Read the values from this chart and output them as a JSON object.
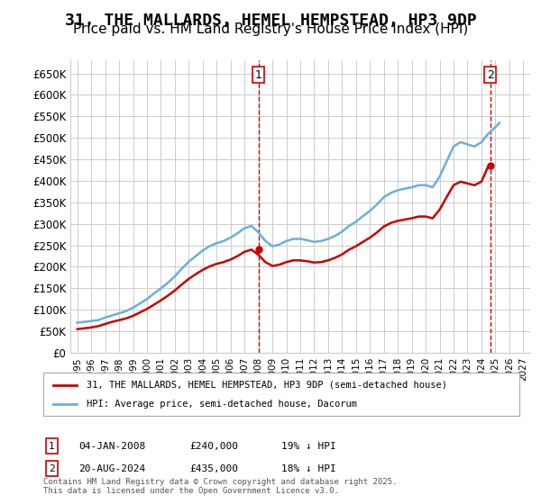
{
  "title": "31, THE MALLARDS, HEMEL HEMPSTEAD, HP3 9DP",
  "subtitle": "Price paid vs. HM Land Registry's House Price Index (HPI)",
  "title_fontsize": 13,
  "subtitle_fontsize": 11,
  "hpi_color": "#6ab0d8",
  "price_color": "#cc0000",
  "vline_color": "#cc0000",
  "background_color": "#ffffff",
  "grid_color": "#cccccc",
  "ylim": [
    0,
    680000
  ],
  "yticks": [
    0,
    50000,
    100000,
    150000,
    200000,
    250000,
    300000,
    350000,
    400000,
    450000,
    500000,
    550000,
    600000,
    650000
  ],
  "ytick_labels": [
    "£0",
    "£50K",
    "£100K",
    "£150K",
    "£200K",
    "£250K",
    "£300K",
    "£350K",
    "£400K",
    "£450K",
    "£500K",
    "£550K",
    "£600K",
    "£650K"
  ],
  "xlim_start": 1994.5,
  "xlim_end": 2027.5,
  "xticks": [
    1995,
    1996,
    1997,
    1998,
    1999,
    2000,
    2001,
    2002,
    2003,
    2004,
    2005,
    2006,
    2007,
    2008,
    2009,
    2010,
    2011,
    2012,
    2013,
    2014,
    2015,
    2016,
    2017,
    2018,
    2019,
    2020,
    2021,
    2022,
    2023,
    2024,
    2025,
    2026,
    2027
  ],
  "purchase1_date": 2008.01,
  "purchase1_price": 240000,
  "purchase1_label": "1",
  "purchase2_date": 2024.64,
  "purchase2_price": 435000,
  "purchase2_label": "2",
  "legend_label1": "31, THE MALLARDS, HEMEL HEMPSTEAD, HP3 9DP (semi-detached house)",
  "legend_label2": "HPI: Average price, semi-detached house, Dacorum",
  "annotation1": "1    04-JAN-2008        £240,000        19% ↓ HPI",
  "annotation2": "2    20-AUG-2024        £435,000        18% ↓ HPI",
  "footnote": "Contains HM Land Registry data © Crown copyright and database right 2025.\nThis data is licensed under the Open Government Licence v3.0.",
  "hpi_data_x": [
    1995,
    1995.5,
    1996,
    1996.5,
    1997,
    1997.5,
    1998,
    1998.5,
    1999,
    1999.5,
    2000,
    2000.5,
    2001,
    2001.5,
    2002,
    2002.5,
    2003,
    2003.5,
    2004,
    2004.5,
    2005,
    2005.5,
    2006,
    2006.5,
    2007,
    2007.5,
    2008,
    2008.5,
    2009,
    2009.5,
    2010,
    2010.5,
    2011,
    2011.5,
    2012,
    2012.5,
    2013,
    2013.5,
    2014,
    2014.5,
    2015,
    2015.5,
    2016,
    2016.5,
    2017,
    2017.5,
    2018,
    2018.5,
    2019,
    2019.5,
    2020,
    2020.5,
    2021,
    2021.5,
    2022,
    2022.5,
    2023,
    2023.5,
    2024,
    2024.5,
    2025,
    2025.3
  ],
  "hpi_data_y": [
    70000,
    72000,
    74000,
    76000,
    82000,
    87000,
    92000,
    97000,
    105000,
    115000,
    125000,
    138000,
    150000,
    163000,
    178000,
    196000,
    212000,
    225000,
    238000,
    248000,
    255000,
    260000,
    268000,
    278000,
    290000,
    295000,
    280000,
    260000,
    248000,
    252000,
    260000,
    265000,
    265000,
    262000,
    258000,
    260000,
    265000,
    272000,
    282000,
    295000,
    305000,
    318000,
    330000,
    345000,
    362000,
    372000,
    378000,
    382000,
    385000,
    390000,
    390000,
    385000,
    410000,
    445000,
    480000,
    490000,
    485000,
    480000,
    490000,
    510000,
    525000,
    535000
  ],
  "price_data_x": [
    1995,
    1995.5,
    1996,
    1996.5,
    1997,
    1997.5,
    1998,
    1998.5,
    1999,
    1999.5,
    2000,
    2000.5,
    2001,
    2001.5,
    2002,
    2002.5,
    2003,
    2003.5,
    2004,
    2004.5,
    2005,
    2005.5,
    2006,
    2006.5,
    2007,
    2007.5,
    2008,
    2008.5,
    2009,
    2009.5,
    2010,
    2010.5,
    2011,
    2011.5,
    2012,
    2012.5,
    2013,
    2013.5,
    2014,
    2014.5,
    2015,
    2015.5,
    2016,
    2016.5,
    2017,
    2017.5,
    2018,
    2018.5,
    2019,
    2019.5,
    2020,
    2020.5,
    2021,
    2021.5,
    2022,
    2022.5,
    2023,
    2023.5,
    2024,
    2024.5
  ],
  "price_data_y": [
    55000,
    57000,
    59000,
    62000,
    67000,
    72000,
    76000,
    80000,
    86000,
    94000,
    102000,
    112000,
    122000,
    133000,
    145000,
    159000,
    172000,
    183000,
    193000,
    201000,
    207000,
    211000,
    217000,
    225000,
    235000,
    240000,
    228000,
    211000,
    202000,
    205000,
    211000,
    215000,
    215000,
    213000,
    210000,
    211000,
    215000,
    221000,
    229000,
    240000,
    248000,
    258000,
    268000,
    280000,
    294000,
    302000,
    307000,
    310000,
    313000,
    317000,
    317000,
    313000,
    333000,
    362000,
    390000,
    398000,
    394000,
    390000,
    398000,
    435000
  ]
}
